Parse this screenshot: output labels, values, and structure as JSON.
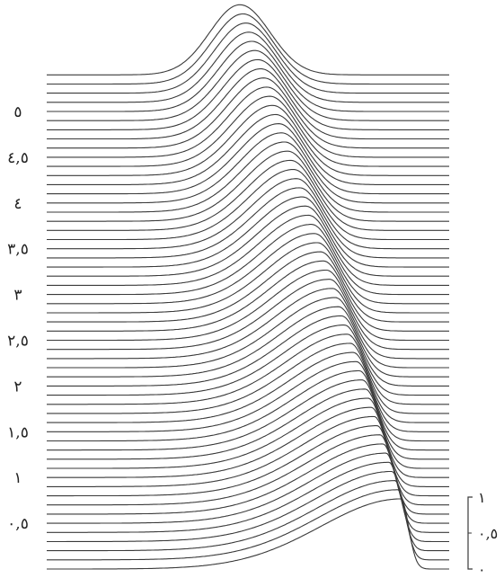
{
  "chart_data": {
    "type": "line",
    "title": "",
    "xlabel": "",
    "ylabel": "",
    "description_kind": "stacked waterfall of propagating pulse profiles",
    "grid": false,
    "colors": {
      "line": "#3a3a3a",
      "background": "#ffffff",
      "text": "#222222"
    },
    "y_axis": {
      "range": [
        0,
        5.5
      ],
      "ticks": [
        {
          "value": 0.5,
          "label": "٠,٥"
        },
        {
          "value": 1,
          "label": "١"
        },
        {
          "value": 1.5,
          "label": "١,٥"
        },
        {
          "value": 2,
          "label": "٢"
        },
        {
          "value": 2.5,
          "label": "٢,٥"
        },
        {
          "value": 3,
          "label": "٣"
        },
        {
          "value": 3.5,
          "label": "٣,٥"
        },
        {
          "value": 4,
          "label": "٤"
        },
        {
          "value": 4.5,
          "label": "٤,٥"
        },
        {
          "value": 5,
          "label": "٥"
        }
      ]
    },
    "amplitude_scale": {
      "placement": "bottom-right",
      "ticks": [
        {
          "value": 1,
          "label": "١"
        },
        {
          "value": 0.5,
          "label": "٠,٥"
        },
        {
          "value": 0,
          "label": "٠"
        }
      ]
    },
    "series": {
      "count": 55,
      "time_start": 0,
      "time_step": 0.1,
      "pulse_amplitude": 1,
      "initial_position": 0.48,
      "final_position": 0.88,
      "steepening": "front steepens toward the bottom traces"
    }
  }
}
